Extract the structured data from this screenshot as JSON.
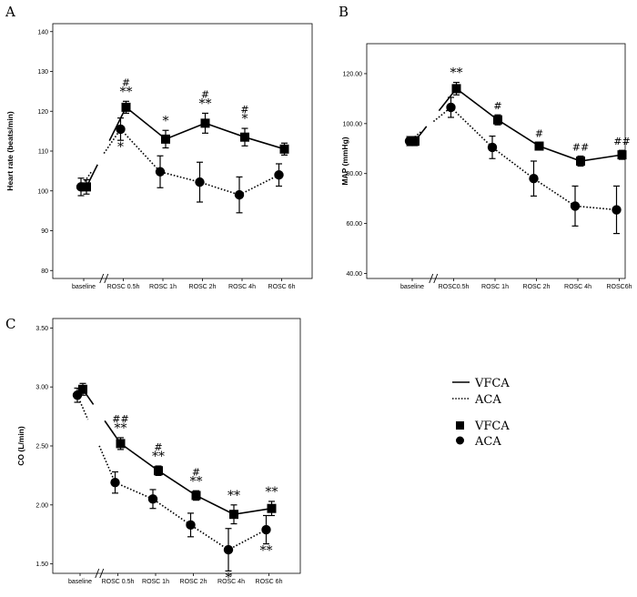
{
  "chart_data": [
    {
      "panel": "A",
      "type": "line",
      "ylabel": "Heart rate (beats/min)",
      "ylim": [
        78,
        142
      ],
      "yticks": [
        80,
        90,
        100,
        110,
        120,
        130,
        140
      ],
      "ytick_labels": [
        "80",
        "90",
        "100",
        "110",
        "120",
        "130",
        "140"
      ],
      "categories": [
        "baseline",
        "ROSC 0.5h",
        "ROSC 1h",
        "ROSC 2h",
        "ROSC 4h",
        "ROSC 6h"
      ],
      "series": [
        {
          "key": "VFCA",
          "line": "solid",
          "marker": "square",
          "values": [
            101,
            121,
            113,
            117,
            113.5,
            110.5
          ],
          "errors": [
            1.8,
            1.5,
            2.2,
            2.5,
            2.2,
            1.5
          ]
        },
        {
          "key": "ACA",
          "line": "dotted",
          "marker": "circle",
          "values": [
            101,
            115.5,
            104.8,
            102.2,
            99,
            104
          ],
          "errors": [
            2.2,
            2.8,
            4,
            5,
            4.5,
            2.8
          ]
        }
      ],
      "annotations": [
        {
          "cat": 1,
          "text": "#",
          "pos": "above",
          "series": 0,
          "row": 2
        },
        {
          "cat": 1,
          "text": "**",
          "pos": "above",
          "series": 0,
          "row": 1
        },
        {
          "cat": 1,
          "text": "*",
          "pos": "below",
          "series": 1,
          "row": 1
        },
        {
          "cat": 2,
          "text": "*",
          "pos": "above",
          "series": 0,
          "row": 1
        },
        {
          "cat": 3,
          "text": "#",
          "pos": "above",
          "series": 0,
          "row": 2
        },
        {
          "cat": 3,
          "text": "**",
          "pos": "above",
          "series": 0,
          "row": 1
        },
        {
          "cat": 4,
          "text": "#",
          "pos": "above",
          "series": 0,
          "row": 2
        },
        {
          "cat": 4,
          "text": "*",
          "pos": "above",
          "series": 0,
          "row": 1
        }
      ]
    },
    {
      "panel": "B",
      "type": "line",
      "ylabel": "MAP (mmHg)",
      "ylim": [
        38,
        132
      ],
      "yticks": [
        40,
        60,
        80,
        100,
        120
      ],
      "ytick_labels": [
        "40.00",
        "60.00",
        "80.00",
        "100.00",
        "120.00"
      ],
      "categories": [
        "baseline",
        "ROSC0.5h",
        "ROSC 1h",
        "ROSC 2h",
        "ROSC 4h",
        "ROSC6h"
      ],
      "series": [
        {
          "key": "VFCA",
          "line": "solid",
          "marker": "square",
          "values": [
            93,
            114,
            101.5,
            91,
            85,
            87.5
          ],
          "errors": [
            1.8,
            2.5,
            2,
            1.5,
            2,
            1.8
          ]
        },
        {
          "key": "ACA",
          "line": "dotted",
          "marker": "circle",
          "values": [
            93,
            106.5,
            90.5,
            78,
            67,
            65.5
          ],
          "errors": [
            1.8,
            4,
            4.5,
            7,
            8,
            9.5
          ]
        }
      ],
      "annotations": [
        {
          "cat": 1,
          "text": "**",
          "pos": "above",
          "series": 0,
          "row": 1
        },
        {
          "cat": 2,
          "text": "#",
          "pos": "above",
          "series": 0,
          "row": 1
        },
        {
          "cat": 3,
          "text": "#",
          "pos": "above",
          "series": 0,
          "row": 1
        },
        {
          "cat": 4,
          "text": "##",
          "pos": "above",
          "series": 0,
          "row": 1
        },
        {
          "cat": 5,
          "text": "##",
          "pos": "above",
          "series": 0,
          "row": 1
        }
      ]
    },
    {
      "panel": "C",
      "type": "line",
      "ylabel": "CO (L/min)",
      "ylim": [
        1.42,
        3.58
      ],
      "yticks": [
        1.5,
        2.0,
        2.5,
        3.0,
        3.5
      ],
      "ytick_labels": [
        "1.50",
        "2.00",
        "2.50",
        "3.00",
        "3.50"
      ],
      "categories": [
        "baseline",
        "ROSC 0.5h",
        "ROSC 1h",
        "ROSC 2h",
        "ROSC 4h",
        "ROSC 6h"
      ],
      "series": [
        {
          "key": "VFCA",
          "line": "solid",
          "marker": "square",
          "values": [
            2.98,
            2.52,
            2.29,
            2.08,
            1.92,
            1.97
          ],
          "errors": [
            0.05,
            0.05,
            0.04,
            0.04,
            0.08,
            0.06
          ]
        },
        {
          "key": "ACA",
          "line": "dotted",
          "marker": "circle",
          "values": [
            2.93,
            2.19,
            2.05,
            1.83,
            1.62,
            1.79
          ],
          "errors": [
            0.06,
            0.09,
            0.08,
            0.1,
            0.18,
            0.12
          ]
        }
      ],
      "annotations": [
        {
          "cat": 1,
          "text": "##",
          "pos": "above",
          "series": 0,
          "row": 2
        },
        {
          "cat": 1,
          "text": "**",
          "pos": "above",
          "series": 0,
          "row": 1
        },
        {
          "cat": 2,
          "text": "#",
          "pos": "above",
          "series": 0,
          "row": 2
        },
        {
          "cat": 2,
          "text": "**",
          "pos": "above",
          "series": 0,
          "row": 1
        },
        {
          "cat": 3,
          "text": "#",
          "pos": "above",
          "series": 0,
          "row": 2
        },
        {
          "cat": 3,
          "text": "**",
          "pos": "above",
          "series": 0,
          "row": 1
        },
        {
          "cat": 4,
          "text": "**",
          "pos": "above",
          "series": 0,
          "row": 1
        },
        {
          "cat": 4,
          "text": "*",
          "pos": "below",
          "series": 1,
          "row": 1
        },
        {
          "cat": 5,
          "text": "**",
          "pos": "above",
          "series": 0,
          "row": 1
        },
        {
          "cat": 5,
          "text": "**",
          "pos": "below",
          "series": 1,
          "row": 1
        }
      ]
    }
  ],
  "legend": {
    "line_entries": [
      {
        "label": "VFCA",
        "style": "solid"
      },
      {
        "label": "ACA",
        "style": "dotted"
      }
    ],
    "marker_entries": [
      {
        "label": "VFCA",
        "marker": "square"
      },
      {
        "label": "ACA",
        "marker": "circle"
      }
    ]
  }
}
